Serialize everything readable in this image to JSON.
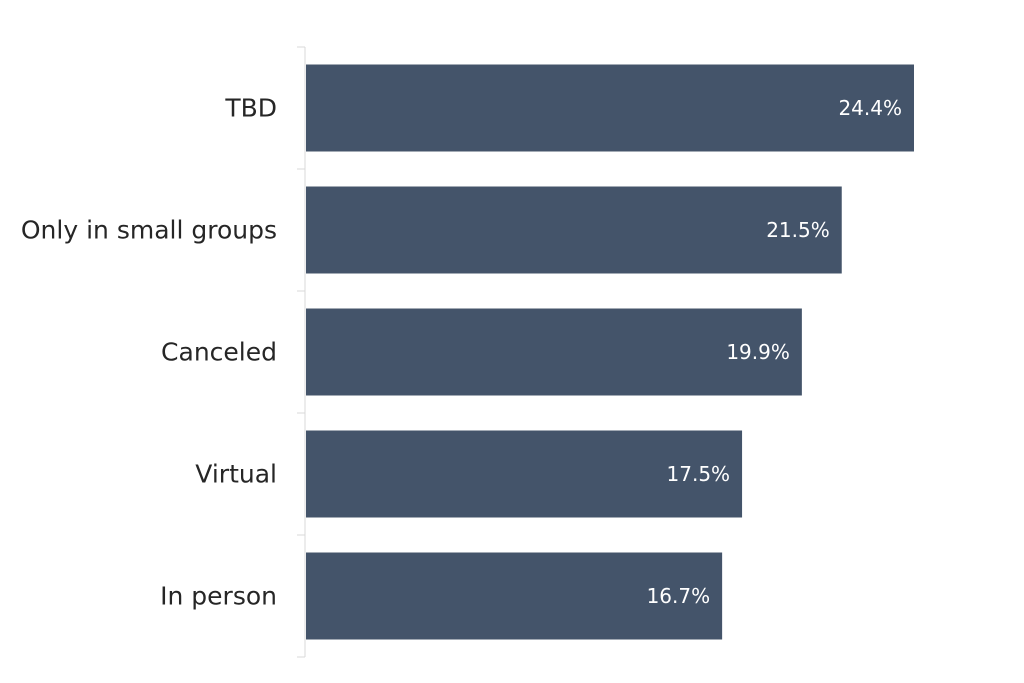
{
  "chart_data": {
    "type": "bar",
    "orientation": "horizontal",
    "categories": [
      "TBD",
      "Only in small groups",
      "Canceled",
      "Virtual",
      "In person"
    ],
    "values": [
      24.4,
      21.5,
      19.9,
      17.5,
      16.7
    ],
    "value_labels": [
      "24.4%",
      "21.5%",
      "19.9%",
      "17.5%",
      "16.7%"
    ],
    "unit": "%",
    "xlim": [
      0,
      26
    ],
    "grid": false,
    "legend": "none",
    "colors": {
      "bar": "#44546a",
      "axis": "#d9d9d9",
      "category_text": "#262626",
      "value_text": "#ffffff"
    }
  }
}
